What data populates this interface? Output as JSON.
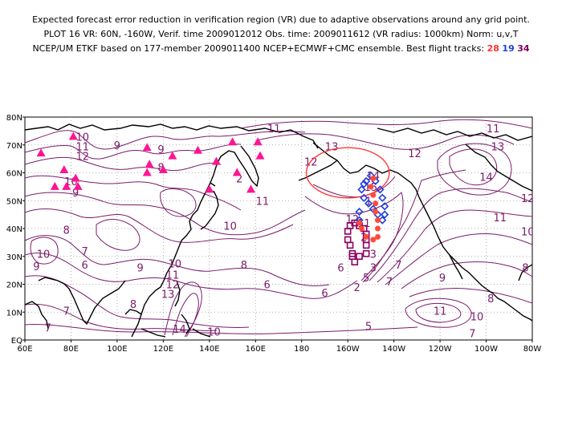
{
  "header": {
    "line1": "Expected forecast error reduction in verification region (VR) due to adaptive observations around any grid point.",
    "line2": "PLOT 16 VR: 60N, -160W, Verif. time 2009012012 Obs. time: 2009011612 (VR radius: 1000km) Norm: u,v,T",
    "line3_prefix": "NCEP/UM ETKF based on 177-member 2009011400 NCEP+ECMWF+CMC ensemble. Best flight tracks:",
    "track_a": "28",
    "track_b": "19",
    "track_c": "34"
  },
  "axes": {
    "y_ticks": [
      "80N",
      "70N",
      "60N",
      "50N",
      "40N",
      "30N",
      "20N",
      "10N",
      "EQ"
    ],
    "x_ticks": [
      "60E",
      "80E",
      "100E",
      "120E",
      "140E",
      "160E",
      "180",
      "160W",
      "140W",
      "120W",
      "100W",
      "80W"
    ]
  },
  "contour_labels": [
    {
      "text": "10",
      "lon": 85,
      "lat": 73
    },
    {
      "text": "11",
      "lon": 85,
      "lat": 69.5
    },
    {
      "text": "12",
      "lon": 85,
      "lat": 66
    },
    {
      "text": "9",
      "lon": 100,
      "lat": 70
    },
    {
      "text": "10",
      "lon": 80,
      "lat": 57
    },
    {
      "text": "9",
      "lon": 82,
      "lat": 53
    },
    {
      "text": "9",
      "lon": 119,
      "lat": 68.5
    },
    {
      "text": "8",
      "lon": 119,
      "lat": 62
    },
    {
      "text": "2",
      "lon": 153,
      "lat": 58
    },
    {
      "text": "11",
      "lon": 168,
      "lat": 76
    },
    {
      "text": "11",
      "lon": 163,
      "lat": 50
    },
    {
      "text": "10",
      "lon": 149,
      "lat": 41
    },
    {
      "text": "13",
      "lon": 193,
      "lat": 69.5
    },
    {
      "text": "12",
      "lon": 184,
      "lat": 64
    },
    {
      "text": "12",
      "lon": 229,
      "lat": 67
    },
    {
      "text": "13",
      "lon": 265,
      "lat": 69.5
    },
    {
      "text": "11",
      "lon": 263,
      "lat": 76
    },
    {
      "text": "14",
      "lon": 260,
      "lat": 58.5
    },
    {
      "text": "12",
      "lon": 278,
      "lat": 51
    },
    {
      "text": "11",
      "lon": 266,
      "lat": 44
    },
    {
      "text": "10",
      "lon": 278,
      "lat": 39
    },
    {
      "text": "8",
      "lon": 78,
      "lat": 39.5
    },
    {
      "text": "10",
      "lon": 68,
      "lat": 31
    },
    {
      "text": "9",
      "lon": 65,
      "lat": 26.5
    },
    {
      "text": "7",
      "lon": 86,
      "lat": 32
    },
    {
      "text": "6",
      "lon": 86,
      "lat": 27
    },
    {
      "text": "9",
      "lon": 110,
      "lat": 26
    },
    {
      "text": "10",
      "lon": 125,
      "lat": 27.5
    },
    {
      "text": "11",
      "lon": 124,
      "lat": 23.5
    },
    {
      "text": "12",
      "lon": 124,
      "lat": 20
    },
    {
      "text": "13",
      "lon": 122,
      "lat": 16.5
    },
    {
      "text": "8",
      "lon": 107,
      "lat": 13
    },
    {
      "text": "7",
      "lon": 78,
      "lat": 10.5
    },
    {
      "text": "7",
      "lon": 70,
      "lat": 4.5
    },
    {
      "text": "14",
      "lon": 127,
      "lat": 4
    },
    {
      "text": "10",
      "lon": 142,
      "lat": 3
    },
    {
      "text": "8",
      "lon": 155,
      "lat": 27
    },
    {
      "text": "6",
      "lon": 165,
      "lat": 20
    },
    {
      "text": "6",
      "lon": 190,
      "lat": 17
    },
    {
      "text": "5",
      "lon": 209,
      "lat": 5
    },
    {
      "text": "7",
      "lon": 218,
      "lat": 21
    },
    {
      "text": "9",
      "lon": 241,
      "lat": 22.5
    },
    {
      "text": "8",
      "lon": 277,
      "lat": 26
    },
    {
      "text": "8",
      "lon": 262,
      "lat": 15
    },
    {
      "text": "11",
      "lon": 240,
      "lat": 10.5
    },
    {
      "text": "10",
      "lon": 256,
      "lat": 8.5
    },
    {
      "text": "7",
      "lon": 254,
      "lat": 2.5
    },
    {
      "text": "14",
      "lon": 211,
      "lat": 59
    },
    {
      "text": "15",
      "lon": 210,
      "lat": 55
    },
    {
      "text": "1",
      "lon": 209,
      "lat": 50
    },
    {
      "text": "11",
      "lon": 207,
      "lat": 42
    },
    {
      "text": "12",
      "lon": 202,
      "lat": 43.5
    },
    {
      "text": "2",
      "lon": 207,
      "lat": 37
    },
    {
      "text": "3",
      "lon": 211,
      "lat": 31
    },
    {
      "text": "3",
      "lon": 211,
      "lat": 26
    },
    {
      "text": "5",
      "lon": 208,
      "lat": 22.5
    },
    {
      "text": "2",
      "lon": 204,
      "lat": 19
    },
    {
      "text": "7",
      "lon": 222,
      "lat": 27
    },
    {
      "text": "6",
      "lon": 197,
      "lat": 26
    }
  ],
  "targets": [
    {
      "lon": 67,
      "lat": 67
    },
    {
      "lon": 81,
      "lat": 73
    },
    {
      "lon": 77,
      "lat": 61
    },
    {
      "lon": 73,
      "lat": 55
    },
    {
      "lon": 78,
      "lat": 55
    },
    {
      "lon": 82,
      "lat": 58
    },
    {
      "lon": 83,
      "lat": 55
    },
    {
      "lon": 113,
      "lat": 69
    },
    {
      "lon": 114,
      "lat": 63
    },
    {
      "lon": 113,
      "lat": 60
    },
    {
      "lon": 120,
      "lat": 61
    },
    {
      "lon": 124,
      "lat": 66
    },
    {
      "lon": 135,
      "lat": 68
    },
    {
      "lon": 143,
      "lat": 64
    },
    {
      "lon": 150,
      "lat": 71
    },
    {
      "lon": 152,
      "lat": 60
    },
    {
      "lon": 161,
      "lat": 71
    },
    {
      "lon": 162,
      "lat": 66
    },
    {
      "lon": 140,
      "lat": 54
    },
    {
      "lon": 158,
      "lat": 54
    }
  ],
  "tracks": {
    "track_a_color": "#ff4a3a",
    "track_b_color": "#1f3fe0",
    "track_c_color": "#8b0060",
    "track_a_points": [
      {
        "lon": 211,
        "lat": 58
      },
      {
        "lon": 210,
        "lat": 55
      },
      {
        "lon": 211,
        "lat": 52
      },
      {
        "lon": 212,
        "lat": 49
      },
      {
        "lon": 212,
        "lat": 46
      },
      {
        "lon": 213,
        "lat": 43
      },
      {
        "lon": 213,
        "lat": 40
      },
      {
        "lon": 213,
        "lat": 37
      },
      {
        "lon": 211,
        "lat": 36
      },
      {
        "lon": 208,
        "lat": 37
      },
      {
        "lon": 206,
        "lat": 40
      },
      {
        "lon": 205,
        "lat": 42
      }
    ],
    "track_b_points": [
      {
        "lon": 210,
        "lat": 59
      },
      {
        "lon": 212,
        "lat": 57
      },
      {
        "lon": 214,
        "lat": 54
      },
      {
        "lon": 215,
        "lat": 51
      },
      {
        "lon": 216,
        "lat": 48
      },
      {
        "lon": 216,
        "lat": 45
      },
      {
        "lon": 215,
        "lat": 43
      },
      {
        "lon": 213,
        "lat": 45
      },
      {
        "lon": 211,
        "lat": 47
      },
      {
        "lon": 209,
        "lat": 49
      },
      {
        "lon": 207,
        "lat": 51
      },
      {
        "lon": 206,
        "lat": 54
      },
      {
        "lon": 208,
        "lat": 57
      },
      {
        "lon": 205,
        "lat": 46
      },
      {
        "lon": 205,
        "lat": 43
      },
      {
        "lon": 207,
        "lat": 56
      }
    ],
    "track_c_points": [
      {
        "lon": 203,
        "lat": 28
      },
      {
        "lon": 202,
        "lat": 31
      },
      {
        "lon": 201,
        "lat": 34
      },
      {
        "lon": 200,
        "lat": 36
      },
      {
        "lon": 200,
        "lat": 39
      },
      {
        "lon": 201,
        "lat": 41
      },
      {
        "lon": 203,
        "lat": 42
      },
      {
        "lon": 205,
        "lat": 41
      },
      {
        "lon": 207,
        "lat": 40
      },
      {
        "lon": 208,
        "lat": 38
      },
      {
        "lon": 208,
        "lat": 36
      },
      {
        "lon": 208,
        "lat": 34
      },
      {
        "lon": 208,
        "lat": 31
      },
      {
        "lon": 205,
        "lat": 30
      },
      {
        "lon": 202,
        "lat": 30
      }
    ]
  },
  "verification_region": {
    "center_lon": 200,
    "center_lat": 60,
    "radius_lon": 18,
    "radius_lat": 9,
    "color": "#ff3a3a"
  },
  "colors": {
    "contour": "#7a1b6b",
    "coast": "#000000",
    "target": "#ff1493",
    "grid": "#999999"
  }
}
